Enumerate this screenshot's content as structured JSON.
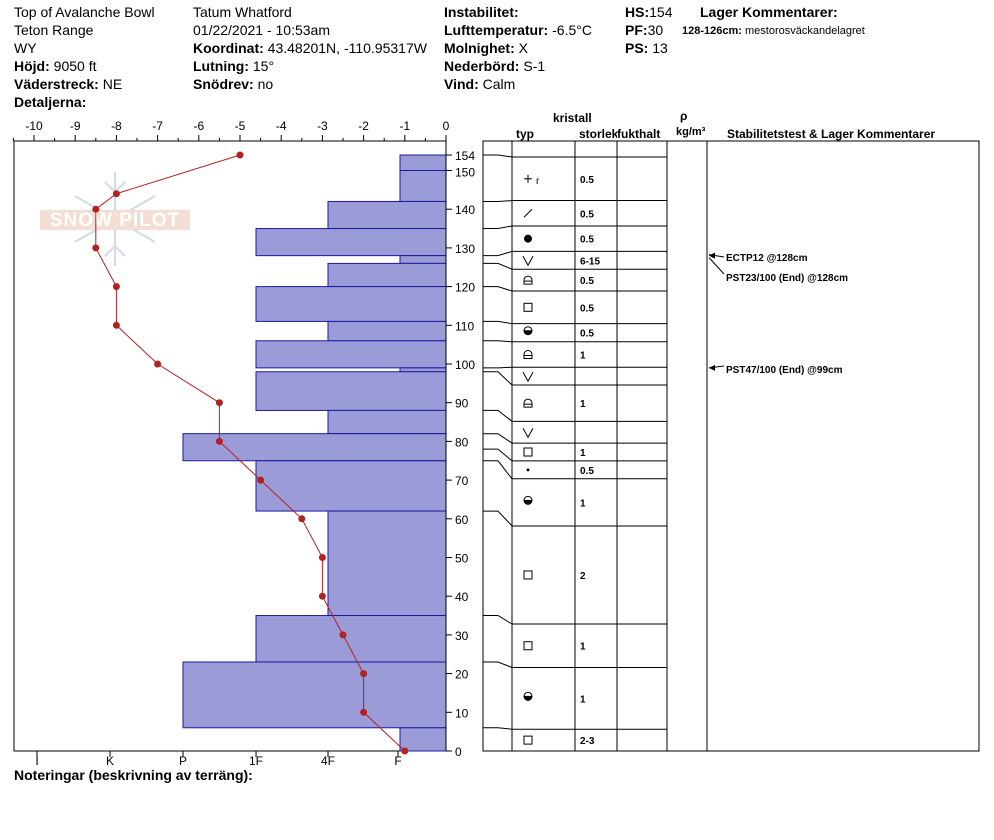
{
  "header": {
    "col1": [
      "Top of Avalanche Bowl",
      "Teton Range",
      "WY"
    ],
    "elevation": {
      "label": "Höjd:",
      "value": "9050 ft"
    },
    "aspect": {
      "label": "Väderstreck:",
      "value": "NE"
    },
    "details": {
      "label": "Detaljerna:"
    },
    "observer": "Tatum Whatford",
    "datetime": "01/22/2021 - 10:53am",
    "coord": {
      "label": "Koordinat:",
      "value": "43.48201N, -110.95317W"
    },
    "slope": {
      "label": "Lutning:",
      "value": "15°"
    },
    "drift": {
      "label": "Snödrev:",
      "value": "no"
    },
    "instability": {
      "label": "Instabilitet:",
      "value": ""
    },
    "airtemp": {
      "label": "Lufttemperatur:",
      "value": "-6.5°C"
    },
    "sky": {
      "label": "Molnighet:",
      "value": "X"
    },
    "precip": {
      "label": "Nederbörd:",
      "value": "S-1"
    },
    "wind": {
      "label": "Vind:",
      "value": "Calm"
    },
    "hs": {
      "label": "HS:",
      "value": "154"
    },
    "pf": {
      "label": "PF:",
      "value": "30"
    },
    "ps": {
      "label": "PS:",
      "value": "13"
    },
    "layer_comments": {
      "label": "Lager Kommentarer:",
      "range": "128-126cm:",
      "text": "mestorosväckandelagret"
    }
  },
  "table_headers": {
    "crystal": "kristall",
    "type": "typ",
    "size": "storlek",
    "moisture": "fukthalt",
    "rho": "ρ",
    "density_unit": "kg/m³",
    "stability": "Stabilitetstest & Lager Kommentarer"
  },
  "footer": {
    "notes_label": "Noteringar (beskrivning av terräng):"
  },
  "watermark": "SNOW PILOT",
  "colors": {
    "hardness_fill": "#9b9bd7",
    "hardness_stroke": "#1a1aa0",
    "temp_line": "#b22222"
  },
  "chart_data": {
    "type": "snow-profile",
    "temperature_axis": {
      "ticks": [
        -10,
        -9,
        -8,
        -7,
        -6,
        -5,
        -4,
        -3,
        -2,
        -1,
        0
      ],
      "range": [
        -10.5,
        0
      ]
    },
    "height_axis": {
      "ticks": [
        0,
        10,
        20,
        30,
        40,
        50,
        60,
        70,
        80,
        90,
        100,
        110,
        120,
        130,
        140,
        150,
        154
      ],
      "range": [
        0,
        154
      ]
    },
    "hardness_axis": {
      "labels": [
        "I",
        "K",
        "P",
        "1F",
        "4F",
        "F"
      ]
    },
    "hardness_layers": [
      {
        "bottom": 150,
        "top": 154,
        "hardness": "F"
      },
      {
        "bottom": 142,
        "top": 150,
        "hardness": "F"
      },
      {
        "bottom": 135,
        "top": 142,
        "hardness": "4F"
      },
      {
        "bottom": 128,
        "top": 135,
        "hardness": "1F"
      },
      {
        "bottom": 126,
        "top": 128,
        "hardness": "F"
      },
      {
        "bottom": 120,
        "top": 126,
        "hardness": "4F"
      },
      {
        "bottom": 111,
        "top": 120,
        "hardness": "1F"
      },
      {
        "bottom": 106,
        "top": 111,
        "hardness": "4F"
      },
      {
        "bottom": 99,
        "top": 106,
        "hardness": "1F"
      },
      {
        "bottom": 98,
        "top": 99,
        "hardness": "F"
      },
      {
        "bottom": 88,
        "top": 98,
        "hardness": "1F"
      },
      {
        "bottom": 82,
        "top": 88,
        "hardness": "4F"
      },
      {
        "bottom": 75,
        "top": 82,
        "hardness": "P"
      },
      {
        "bottom": 62,
        "top": 75,
        "hardness": "1F"
      },
      {
        "bottom": 35,
        "top": 62,
        "hardness": "4F"
      },
      {
        "bottom": 23,
        "top": 35,
        "hardness": "1F"
      },
      {
        "bottom": 6,
        "top": 23,
        "hardness": "P"
      },
      {
        "bottom": 0,
        "top": 6,
        "hardness": "F"
      }
    ],
    "temperature_profile": [
      {
        "h": 154,
        "t": -5.0
      },
      {
        "h": 144,
        "t": -8.0
      },
      {
        "h": 140,
        "t": -8.5
      },
      {
        "h": 130,
        "t": -8.5
      },
      {
        "h": 120,
        "t": -8.0
      },
      {
        "h": 110,
        "t": -8.0
      },
      {
        "h": 100,
        "t": -7.0
      },
      {
        "h": 90,
        "t": -5.5
      },
      {
        "h": 80,
        "t": -5.5
      },
      {
        "h": 70,
        "t": -4.5
      },
      {
        "h": 60,
        "t": -3.5
      },
      {
        "h": 50,
        "t": -3.0
      },
      {
        "h": 40,
        "t": -3.0
      },
      {
        "h": 30,
        "t": -2.5
      },
      {
        "h": 20,
        "t": -2.0
      },
      {
        "h": 10,
        "t": -2.0
      },
      {
        "h": 0,
        "t": -1.0
      }
    ],
    "layers_table": [
      {
        "top": 154,
        "bottom": 142,
        "type": "+r",
        "size": "0.5"
      },
      {
        "top": 142,
        "bottom": 135,
        "type": "/",
        "size": "0.5"
      },
      {
        "top": 135,
        "bottom": 128,
        "type": "●",
        "size": "0.5"
      },
      {
        "top": 128,
        "bottom": 126,
        "type": "V",
        "size": "6-15"
      },
      {
        "top": 126,
        "bottom": 120,
        "type": "rounding",
        "size": "0.5"
      },
      {
        "top": 120,
        "bottom": 111,
        "type": "□",
        "size": "0.5"
      },
      {
        "top": 111,
        "bottom": 106,
        "type": "melt",
        "size": "0.5"
      },
      {
        "top": 106,
        "bottom": 99,
        "type": "rounding",
        "size": "1"
      },
      {
        "top": 99,
        "bottom": 98,
        "type": "V",
        "size": ""
      },
      {
        "top": 98,
        "bottom": 88,
        "type": "rounding",
        "size": "1"
      },
      {
        "top": 88,
        "bottom": 82,
        "type": "V",
        "size": ""
      },
      {
        "top": 82,
        "bottom": 78,
        "type": "□",
        "size": "1"
      },
      {
        "top": 78,
        "bottom": 75,
        "type": "•",
        "size": "0.5"
      },
      {
        "top": 75,
        "bottom": 62,
        "type": "melt",
        "size": "1"
      },
      {
        "top": 62,
        "bottom": 35,
        "type": "□",
        "size": "2"
      },
      {
        "top": 35,
        "bottom": 23,
        "type": "□",
        "size": "1"
      },
      {
        "top": 23,
        "bottom": 6,
        "type": "melt",
        "size": "1"
      },
      {
        "top": 6,
        "bottom": 0,
        "type": "□",
        "size": "2-3"
      }
    ],
    "stability_tests": [
      {
        "label": "ECTP12 @128cm",
        "height": 128
      },
      {
        "label": "PST23/100 (End) @128cm",
        "height": 128
      },
      {
        "label": "PST47/100 (End) @99cm",
        "height": 99
      }
    ]
  }
}
